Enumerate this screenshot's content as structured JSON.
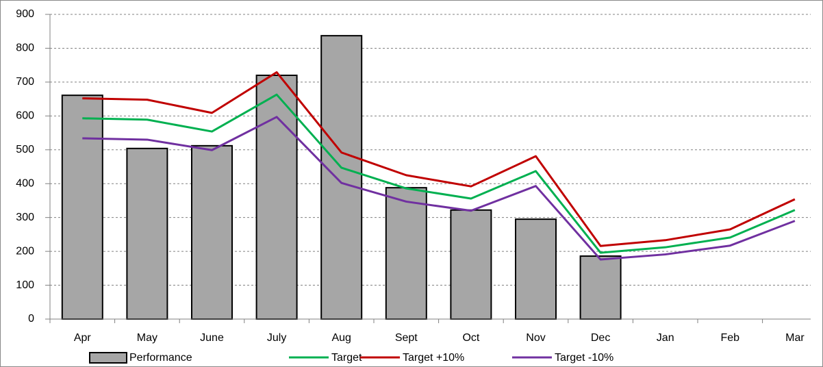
{
  "chart_data": {
    "type": "bar_line",
    "categories": [
      "Apr",
      "May",
      "June",
      "July",
      "Aug",
      "Sept",
      "Oct",
      "Nov",
      "Dec",
      "Jan",
      "Feb",
      "Mar"
    ],
    "series": [
      {
        "name": "Performance",
        "type": "bar",
        "color": "#a6a6a6",
        "values": [
          661,
          504,
          512,
          720,
          837,
          388,
          322,
          295,
          186,
          null,
          null,
          null
        ]
      },
      {
        "name": "Target",
        "type": "line",
        "color": "#00b050",
        "values": [
          593,
          589,
          554,
          663,
          447,
          386,
          356,
          437,
          196,
          212,
          241,
          322
        ]
      },
      {
        "name": "Target +10%",
        "type": "line",
        "color": "#c00000",
        "values": [
          652,
          648,
          609,
          729,
          492,
          425,
          392,
          481,
          216,
          233,
          265,
          354
        ]
      },
      {
        "name": "Target -10%",
        "type": "line",
        "color": "#7030a0",
        "values": [
          534,
          530,
          499,
          597,
          402,
          347,
          320,
          393,
          176,
          191,
          217,
          290
        ]
      }
    ],
    "ylim": [
      0,
      900
    ],
    "yticks": [
      0,
      100,
      200,
      300,
      400,
      500,
      600,
      700,
      800,
      900
    ],
    "grid": true,
    "legend": "bottom"
  }
}
